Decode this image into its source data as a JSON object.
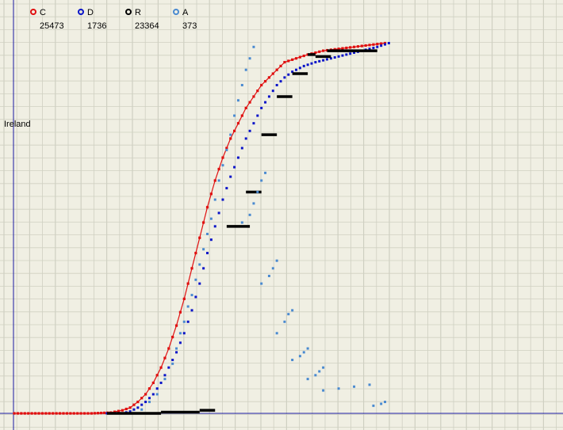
{
  "chart_data": {
    "type": "scatter",
    "title": "",
    "xlabel": "",
    "ylabel": "",
    "xlim": [
      0,
      100
    ],
    "ylim": [
      0,
      100
    ],
    "grid": true,
    "legend_placement": "top-left",
    "annotation": "Ireland",
    "colors": {
      "C": "#e01010",
      "D": "#0a14c8",
      "R": "#000000",
      "A": "#4a8ad0",
      "background": "#f0efe3",
      "grid": "#cfd0c2",
      "axis": "#1a1aa0"
    },
    "legend": [
      {
        "name": "C",
        "count": "25473",
        "color": "#e01010"
      },
      {
        "name": "D",
        "count": "1736",
        "color": "#0a14c8"
      },
      {
        "name": "R",
        "count": "23364",
        "color": "#000000"
      },
      {
        "name": "A",
        "count": "373",
        "color": "#4a8ad0"
      }
    ],
    "series": [
      {
        "name": "C",
        "style": "line+markers",
        "points": [
          [
            0,
            0
          ],
          [
            20,
            0
          ],
          [
            25,
            0.2
          ],
          [
            28,
            0.8
          ],
          [
            30,
            1.5
          ],
          [
            32,
            3
          ],
          [
            34,
            5
          ],
          [
            36,
            8
          ],
          [
            38,
            12
          ],
          [
            40,
            17
          ],
          [
            42,
            23
          ],
          [
            44,
            30
          ],
          [
            46,
            38
          ],
          [
            48,
            46
          ],
          [
            50,
            54
          ],
          [
            52,
            61
          ],
          [
            54,
            67
          ],
          [
            56,
            72
          ],
          [
            58,
            76
          ],
          [
            60,
            80
          ],
          [
            62,
            83
          ],
          [
            64,
            86
          ],
          [
            66,
            88
          ],
          [
            68,
            90
          ],
          [
            70,
            92
          ],
          [
            73,
            93
          ],
          [
            76,
            94
          ],
          [
            80,
            95
          ],
          [
            84,
            95.5
          ],
          [
            88,
            96
          ],
          [
            92,
            96.5
          ],
          [
            96,
            97
          ]
        ]
      },
      {
        "name": "D",
        "style": "markers",
        "points": [
          [
            24,
            0
          ],
          [
            28,
            0
          ],
          [
            30,
            0.5
          ],
          [
            32,
            1.5
          ],
          [
            34,
            3
          ],
          [
            36,
            5
          ],
          [
            38,
            8
          ],
          [
            40,
            12
          ],
          [
            42,
            16
          ],
          [
            44,
            21
          ],
          [
            46,
            27
          ],
          [
            48,
            34
          ],
          [
            50,
            42
          ],
          [
            52,
            49
          ],
          [
            54,
            56
          ],
          [
            56,
            62
          ],
          [
            58,
            67
          ],
          [
            60,
            72
          ],
          [
            62,
            76
          ],
          [
            64,
            80
          ],
          [
            66,
            83
          ],
          [
            68,
            86
          ],
          [
            70,
            88
          ],
          [
            72,
            89.5
          ],
          [
            75,
            91
          ],
          [
            78,
            92
          ],
          [
            82,
            93
          ],
          [
            86,
            94
          ],
          [
            90,
            95
          ],
          [
            94,
            96
          ],
          [
            97,
            97
          ]
        ]
      },
      {
        "name": "R",
        "style": "step",
        "segments": [
          [
            [
              24,
              0
            ],
            [
              38,
              0
            ]
          ],
          [
            [
              38,
              0.3
            ],
            [
              48,
              0.3
            ]
          ],
          [
            [
              48,
              0.8
            ],
            [
              52,
              0.8
            ]
          ],
          [
            [
              55,
              49
            ],
            [
              61,
              49
            ]
          ],
          [
            [
              60,
              58
            ],
            [
              64,
              58
            ]
          ],
          [
            [
              64,
              73
            ],
            [
              68,
              73
            ]
          ],
          [
            [
              68,
              83
            ],
            [
              72,
              83
            ]
          ],
          [
            [
              72,
              89
            ],
            [
              76,
              89
            ]
          ],
          [
            [
              76,
              94
            ],
            [
              78,
              94
            ]
          ],
          [
            [
              78,
              93.5
            ],
            [
              82,
              93.5
            ]
          ],
          [
            [
              81,
              95
            ],
            [
              94,
              95
            ]
          ]
        ]
      },
      {
        "name": "A",
        "style": "markers",
        "points": [
          [
            33,
            1
          ],
          [
            35,
            3
          ],
          [
            37,
            5
          ],
          [
            39,
            9
          ],
          [
            41,
            13
          ],
          [
            42,
            17
          ],
          [
            43,
            21
          ],
          [
            44,
            24
          ],
          [
            45,
            28
          ],
          [
            46,
            31
          ],
          [
            47,
            35
          ],
          [
            48,
            39
          ],
          [
            49,
            43
          ],
          [
            50,
            47
          ],
          [
            51,
            51
          ],
          [
            52,
            56
          ],
          [
            53,
            61
          ],
          [
            54,
            65
          ],
          [
            55,
            69
          ],
          [
            56,
            73
          ],
          [
            57,
            78
          ],
          [
            58,
            82
          ],
          [
            59,
            86
          ],
          [
            60,
            90
          ],
          [
            61,
            93
          ],
          [
            62,
            96
          ],
          [
            59,
            50
          ],
          [
            61,
            52
          ],
          [
            62,
            55
          ],
          [
            63,
            58
          ],
          [
            64,
            61
          ],
          [
            65,
            63
          ],
          [
            64,
            34
          ],
          [
            66,
            36
          ],
          [
            67,
            38
          ],
          [
            68,
            40
          ],
          [
            68,
            21
          ],
          [
            70,
            24
          ],
          [
            71,
            26
          ],
          [
            72,
            27
          ],
          [
            72,
            14
          ],
          [
            74,
            15
          ],
          [
            75,
            16
          ],
          [
            76,
            17
          ],
          [
            76,
            9
          ],
          [
            78,
            10
          ],
          [
            79,
            11
          ],
          [
            80,
            12
          ],
          [
            80,
            6
          ],
          [
            84,
            6.5
          ],
          [
            88,
            7
          ],
          [
            92,
            7.5
          ],
          [
            93,
            2
          ],
          [
            95,
            2.5
          ],
          [
            96,
            3
          ]
        ]
      }
    ]
  }
}
